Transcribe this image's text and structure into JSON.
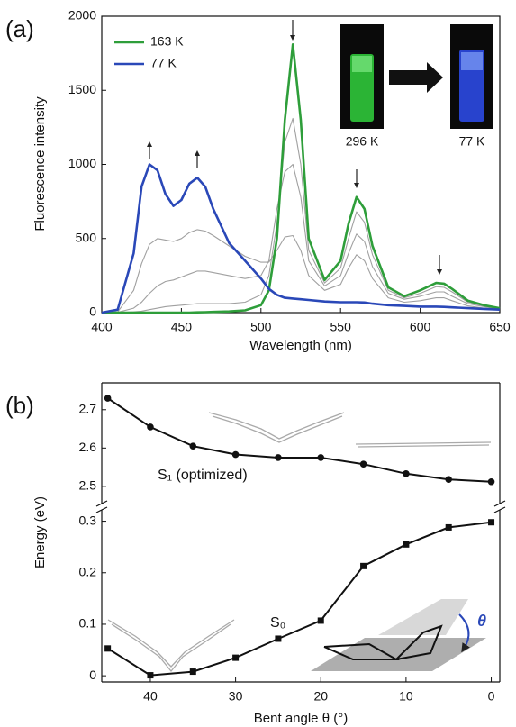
{
  "chart_data": [
    {
      "type": "line",
      "panel_label": "(a)",
      "xlabel": "Wavelength (nm)",
      "ylabel": "Fluorescence intensity",
      "x": [
        400,
        410,
        420,
        425,
        430,
        435,
        440,
        445,
        450,
        455,
        460,
        465,
        470,
        480,
        490,
        500,
        505,
        510,
        515,
        520,
        525,
        530,
        540,
        550,
        555,
        560,
        565,
        570,
        580,
        590,
        600,
        610,
        615,
        620,
        630,
        640,
        650
      ],
      "xlim": [
        400,
        650
      ],
      "xticks": [
        400,
        450,
        500,
        550,
        600,
        650
      ],
      "ylim": [
        0,
        2000
      ],
      "yticks": [
        0,
        500,
        1000,
        1500,
        2000
      ],
      "legend_position": "upper left",
      "annotations": [
        "296 K",
        "77 K"
      ],
      "series": [
        {
          "name": "163 K",
          "color": "#2e9e3a",
          "values": [
            0,
            0,
            0,
            0,
            0,
            0,
            0,
            0,
            0,
            0,
            2,
            3,
            5,
            8,
            15,
            50,
            150,
            500,
            1300,
            1810,
            1300,
            500,
            220,
            350,
            600,
            780,
            700,
            450,
            170,
            110,
            150,
            200,
            195,
            160,
            80,
            50,
            30
          ]
        },
        {
          "name": "77 K",
          "color": "#2a48b8",
          "values": [
            0,
            20,
            400,
            850,
            1000,
            960,
            800,
            720,
            760,
            870,
            910,
            850,
            700,
            470,
            350,
            230,
            160,
            120,
            100,
            95,
            90,
            85,
            75,
            70,
            70,
            70,
            68,
            60,
            50,
            45,
            40,
            40,
            38,
            35,
            30,
            25,
            20
          ]
        },
        {
          "color": "#a0a0a0",
          "values": [
            0,
            0,
            5,
            10,
            20,
            30,
            40,
            45,
            50,
            55,
            60,
            60,
            60,
            60,
            70,
            120,
            250,
            600,
            1150,
            1310,
            1000,
            420,
            200,
            300,
            500,
            680,
            610,
            390,
            150,
            100,
            130,
            175,
            170,
            140,
            70,
            45,
            25
          ]
        },
        {
          "color": "#a0a0a0",
          "values": [
            0,
            2,
            30,
            70,
            130,
            180,
            210,
            220,
            240,
            260,
            280,
            280,
            270,
            250,
            230,
            250,
            350,
            700,
            950,
            1000,
            780,
            350,
            180,
            250,
            400,
            530,
            480,
            310,
            130,
            90,
            110,
            140,
            140,
            110,
            60,
            40,
            22
          ]
        },
        {
          "color": "#a0a0a0",
          "values": [
            0,
            5,
            150,
            330,
            460,
            500,
            490,
            480,
            500,
            540,
            560,
            550,
            520,
            450,
            380,
            340,
            340,
            420,
            510,
            520,
            420,
            250,
            150,
            190,
            300,
            390,
            350,
            230,
            100,
            70,
            80,
            100,
            100,
            80,
            45,
            30,
            18
          ]
        }
      ]
    },
    {
      "type": "broken-line",
      "panel_label": "(b)",
      "xlabel": "Bent angle θ (°)",
      "ylabel": "Energy (eV)",
      "x": [
        45,
        40,
        35,
        30,
        25,
        20,
        15,
        10,
        5,
        0
      ],
      "xlim": [
        45.7,
        -1
      ],
      "xticks": [
        40,
        30,
        20,
        10,
        0
      ],
      "ylim": [
        -0.012,
        0.322
      ],
      "yticks": [
        0,
        0.1,
        0.2,
        0.3
      ],
      "y2lim": [
        2.455,
        2.77
      ],
      "y2ticks": [
        2.5,
        2.6,
        2.7
      ],
      "series": [
        {
          "name": "S₁ (optimized)",
          "color": "#111111",
          "marker": "circle",
          "axis": "y2",
          "values": [
            2.73,
            2.655,
            2.605,
            2.583,
            2.575,
            2.575,
            2.558,
            2.533,
            2.518,
            2.512
          ]
        },
        {
          "name": "S₀",
          "color": "#111111",
          "marker": "square",
          "values": [
            0.053,
            0.001,
            0.008,
            0.035,
            0.072,
            0.107,
            0.213,
            0.255,
            0.288,
            0.298
          ]
        }
      ]
    }
  ]
}
